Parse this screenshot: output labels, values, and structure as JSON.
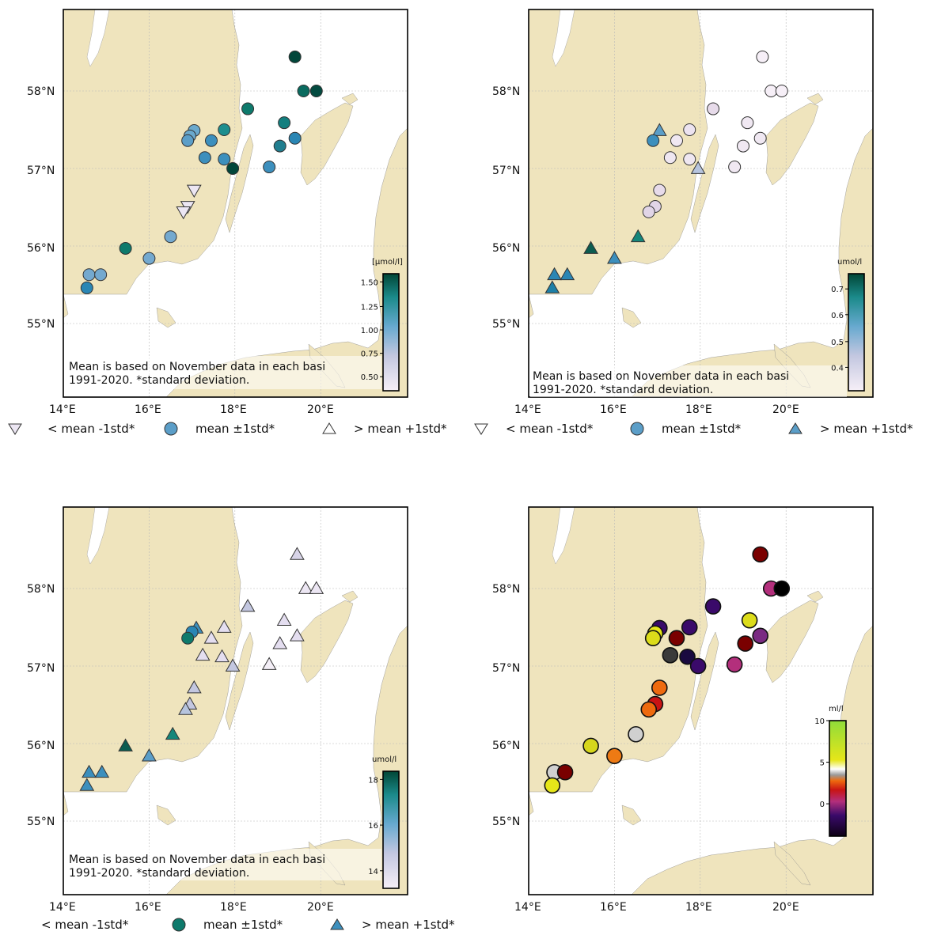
{
  "colors": {
    "land": "#efe4bd",
    "sea": "#ffffff",
    "grid": "#b8b8b8",
    "frame": "#000000"
  },
  "axis": {
    "lat_labels": [
      "58°N",
      "57°N",
      "56°N",
      "55°N"
    ],
    "lon_labels": [
      "14°E",
      "16°E",
      "18°E",
      "20°E"
    ]
  },
  "panels": [
    {
      "id": "p1",
      "note": [
        "Mean is based on November data in each basi",
        "1991-2020. *standard deviation."
      ],
      "colorbar": {
        "title": "[µmol/l]",
        "ticks": [
          "1.50",
          "1.25",
          "1.00",
          "0.75",
          "0.50"
        ],
        "scheme": "teal"
      },
      "legend": [
        {
          "marker": "tri-down",
          "fill": "#ece6f3",
          "label": "< mean -1std*"
        },
        {
          "marker": "circle",
          "fill": "#5b9ec8",
          "label": "mean ±1std*"
        },
        {
          "marker": "tri-up",
          "fill": "#ffffff",
          "label": "> mean +1std*"
        }
      ]
    },
    {
      "id": "p2",
      "note": [
        "Mean is based on November data in each basi",
        "1991-2020. *standard deviation."
      ],
      "colorbar": {
        "title": "umol/l",
        "ticks": [
          "0.7",
          "0.6",
          "0.5",
          "0.4"
        ],
        "scheme": "teal"
      },
      "legend": [
        {
          "marker": "tri-down",
          "fill": "#ffffff",
          "label": "< mean -1std*"
        },
        {
          "marker": "circle",
          "fill": "#5b9ec8",
          "label": "mean ±1std*"
        },
        {
          "marker": "tri-up",
          "fill": "#5b9ec8",
          "label": "> mean +1std*"
        }
      ]
    },
    {
      "id": "p3",
      "note": [
        "Mean is based on November data in each basi",
        "1991-2020. *standard deviation."
      ],
      "colorbar": {
        "title": "umol/l",
        "ticks": [
          "18",
          "16",
          "14"
        ],
        "scheme": "teal"
      },
      "legend": [
        {
          "marker": "none",
          "fill": "",
          "label": "< mean -1std*"
        },
        {
          "marker": "circle",
          "fill": "#0e7a6c",
          "label": "mean ±1std*"
        },
        {
          "marker": "tri-up",
          "fill": "#3c8fbd",
          "label": "> mean +1std*"
        }
      ]
    },
    {
      "id": "p4",
      "note": [],
      "colorbar": {
        "title": "ml/l",
        "ticks": [
          "10",
          "5",
          "0"
        ],
        "scheme": "oxygen"
      },
      "legend": []
    }
  ],
  "map_data": {
    "p1": [
      {
        "lon": 19.4,
        "lat": 58.44,
        "m": "circle",
        "c": "#01463a"
      },
      {
        "lon": 19.6,
        "lat": 58.0,
        "m": "circle",
        "c": "#0a6b5f"
      },
      {
        "lon": 19.9,
        "lat": 58.0,
        "m": "circle",
        "c": "#034b40"
      },
      {
        "lon": 18.3,
        "lat": 57.77,
        "m": "circle",
        "c": "#0e7a6c"
      },
      {
        "lon": 19.15,
        "lat": 57.59,
        "m": "circle",
        "c": "#137f7f"
      },
      {
        "lon": 17.75,
        "lat": 57.5,
        "m": "circle",
        "c": "#1d8e8e"
      },
      {
        "lon": 17.05,
        "lat": 57.49,
        "m": "circle",
        "c": "#6aa9cd"
      },
      {
        "lon": 16.95,
        "lat": 57.42,
        "m": "circle",
        "c": "#6aa9cd"
      },
      {
        "lon": 16.9,
        "lat": 57.36,
        "m": "circle",
        "c": "#5b9ec8"
      },
      {
        "lon": 17.45,
        "lat": 57.36,
        "m": "circle",
        "c": "#3c8fbd"
      },
      {
        "lon": 19.4,
        "lat": 57.39,
        "m": "circle",
        "c": "#2a86b4"
      },
      {
        "lon": 19.05,
        "lat": 57.29,
        "m": "circle",
        "c": "#207e8f"
      },
      {
        "lon": 17.3,
        "lat": 57.14,
        "m": "circle",
        "c": "#3c8fbd"
      },
      {
        "lon": 17.75,
        "lat": 57.12,
        "m": "circle",
        "c": "#3c8fbd"
      },
      {
        "lon": 17.95,
        "lat": 57.0,
        "m": "circle",
        "c": "#01463a"
      },
      {
        "lon": 18.8,
        "lat": 57.02,
        "m": "circle",
        "c": "#3c8fbd"
      },
      {
        "lon": 17.05,
        "lat": 56.72,
        "m": "tri-down",
        "c": "#ece6f3"
      },
      {
        "lon": 16.9,
        "lat": 56.51,
        "m": "tri-down",
        "c": "#ece6f3"
      },
      {
        "lon": 16.8,
        "lat": 56.44,
        "m": "tri-down",
        "c": "#ece6f3"
      },
      {
        "lon": 16.5,
        "lat": 56.12,
        "m": "circle",
        "c": "#74a9cf"
      },
      {
        "lon": 15.45,
        "lat": 55.97,
        "m": "circle",
        "c": "#0e7a6c"
      },
      {
        "lon": 16.0,
        "lat": 55.84,
        "m": "circle",
        "c": "#74a9cf"
      },
      {
        "lon": 14.6,
        "lat": 55.63,
        "m": "circle",
        "c": "#74a9cf"
      },
      {
        "lon": 14.87,
        "lat": 55.63,
        "m": "circle",
        "c": "#74a9cf"
      },
      {
        "lon": 14.55,
        "lat": 55.46,
        "m": "circle",
        "c": "#2a86b4"
      }
    ],
    "p2": [
      {
        "lon": 19.45,
        "lat": 58.44,
        "m": "circle",
        "c": "#f6eff7"
      },
      {
        "lon": 19.65,
        "lat": 58.0,
        "m": "circle",
        "c": "#f6eff7"
      },
      {
        "lon": 19.9,
        "lat": 58.0,
        "m": "circle",
        "c": "#f6eff7"
      },
      {
        "lon": 18.3,
        "lat": 57.77,
        "m": "circle",
        "c": "#e7dbea"
      },
      {
        "lon": 19.1,
        "lat": 57.59,
        "m": "circle",
        "c": "#f0e8f2"
      },
      {
        "lon": 17.75,
        "lat": 57.5,
        "m": "circle",
        "c": "#ece3f0"
      },
      {
        "lon": 17.05,
        "lat": 57.49,
        "m": "tri-up",
        "c": "#5b9ec8"
      },
      {
        "lon": 16.9,
        "lat": 57.36,
        "m": "circle",
        "c": "#3c8fbd"
      },
      {
        "lon": 17.45,
        "lat": 57.36,
        "m": "circle",
        "c": "#f0e8f2"
      },
      {
        "lon": 19.4,
        "lat": 57.39,
        "m": "circle",
        "c": "#f0e8f2"
      },
      {
        "lon": 19.0,
        "lat": 57.29,
        "m": "circle",
        "c": "#f0e8f2"
      },
      {
        "lon": 17.3,
        "lat": 57.14,
        "m": "circle",
        "c": "#efe7f1"
      },
      {
        "lon": 17.75,
        "lat": 57.12,
        "m": "circle",
        "c": "#efe7f1"
      },
      {
        "lon": 17.95,
        "lat": 57.0,
        "m": "tri-up",
        "c": "#b6c4de"
      },
      {
        "lon": 18.8,
        "lat": 57.02,
        "m": "circle",
        "c": "#f0e8f2"
      },
      {
        "lon": 17.05,
        "lat": 56.72,
        "m": "circle",
        "c": "#e7dbea"
      },
      {
        "lon": 16.95,
        "lat": 56.51,
        "m": "circle",
        "c": "#e1d5e7"
      },
      {
        "lon": 16.8,
        "lat": 56.44,
        "m": "circle",
        "c": "#e1d5e7"
      },
      {
        "lon": 16.55,
        "lat": 56.12,
        "m": "tri-up",
        "c": "#15867a"
      },
      {
        "lon": 15.45,
        "lat": 55.97,
        "m": "tri-up",
        "c": "#0b5c50"
      },
      {
        "lon": 16.0,
        "lat": 55.84,
        "m": "tri-up",
        "c": "#3c8fbd"
      },
      {
        "lon": 14.6,
        "lat": 55.63,
        "m": "tri-up",
        "c": "#2a86b4"
      },
      {
        "lon": 14.9,
        "lat": 55.63,
        "m": "tri-up",
        "c": "#2a86b4"
      },
      {
        "lon": 14.55,
        "lat": 55.46,
        "m": "tri-up",
        "c": "#1d7fa6"
      }
    ],
    "p3": [
      {
        "lon": 19.45,
        "lat": 58.44,
        "m": "tri-up",
        "c": "#d8d4e8"
      },
      {
        "lon": 19.65,
        "lat": 58.0,
        "m": "tri-up",
        "c": "#ece6f3"
      },
      {
        "lon": 19.9,
        "lat": 58.0,
        "m": "tri-up",
        "c": "#ece6f3"
      },
      {
        "lon": 18.3,
        "lat": 57.77,
        "m": "tri-up",
        "c": "#c3c7e0"
      },
      {
        "lon": 19.15,
        "lat": 57.59,
        "m": "tri-up",
        "c": "#e4def0"
      },
      {
        "lon": 17.75,
        "lat": 57.5,
        "m": "tri-up",
        "c": "#e4def0"
      },
      {
        "lon": 17.1,
        "lat": 57.49,
        "m": "tri-up",
        "c": "#3c8fbd"
      },
      {
        "lon": 17.0,
        "lat": 57.44,
        "m": "circle",
        "c": "#2a86b4"
      },
      {
        "lon": 16.9,
        "lat": 57.36,
        "m": "circle",
        "c": "#0e7a6c"
      },
      {
        "lon": 17.45,
        "lat": 57.36,
        "m": "tri-up",
        "c": "#e4def0"
      },
      {
        "lon": 19.45,
        "lat": 57.39,
        "m": "tri-up",
        "c": "#e4def0"
      },
      {
        "lon": 19.05,
        "lat": 57.29,
        "m": "tri-up",
        "c": "#e4def0"
      },
      {
        "lon": 17.25,
        "lat": 57.14,
        "m": "tri-up",
        "c": "#e4def0"
      },
      {
        "lon": 17.7,
        "lat": 57.12,
        "m": "tri-up",
        "c": "#e4def0"
      },
      {
        "lon": 17.95,
        "lat": 57.0,
        "m": "tri-up",
        "c": "#c3c7e0"
      },
      {
        "lon": 18.8,
        "lat": 57.02,
        "m": "tri-up",
        "c": "#f3eef6"
      },
      {
        "lon": 17.05,
        "lat": 56.72,
        "m": "tri-up",
        "c": "#c3c7e0"
      },
      {
        "lon": 16.95,
        "lat": 56.51,
        "m": "tri-up",
        "c": "#c3c7e0"
      },
      {
        "lon": 16.85,
        "lat": 56.44,
        "m": "tri-up",
        "c": "#b6c4de"
      },
      {
        "lon": 16.55,
        "lat": 56.12,
        "m": "tri-up",
        "c": "#15867a"
      },
      {
        "lon": 15.45,
        "lat": 55.97,
        "m": "tri-up",
        "c": "#0b5c50"
      },
      {
        "lon": 16.0,
        "lat": 55.84,
        "m": "tri-up",
        "c": "#5b9ec8"
      },
      {
        "lon": 14.6,
        "lat": 55.63,
        "m": "tri-up",
        "c": "#3c8fbd"
      },
      {
        "lon": 14.9,
        "lat": 55.63,
        "m": "tri-up",
        "c": "#3c8fbd"
      },
      {
        "lon": 14.55,
        "lat": 55.46,
        "m": "tri-up",
        "c": "#3c8fbd"
      }
    ],
    "p4": [
      {
        "lon": 19.4,
        "lat": 58.44,
        "m": "circle",
        "c": "#7a0000"
      },
      {
        "lon": 19.65,
        "lat": 58.0,
        "m": "circle",
        "c": "#b32f7c"
      },
      {
        "lon": 19.9,
        "lat": 58.0,
        "m": "circle",
        "c": "#000000"
      },
      {
        "lon": 18.3,
        "lat": 57.77,
        "m": "circle",
        "c": "#3a0a6a"
      },
      {
        "lon": 19.15,
        "lat": 57.59,
        "m": "circle",
        "c": "#dcdc1a"
      },
      {
        "lon": 17.05,
        "lat": 57.49,
        "m": "circle",
        "c": "#3a0a6a"
      },
      {
        "lon": 17.75,
        "lat": 57.5,
        "m": "circle",
        "c": "#3a0a6a"
      },
      {
        "lon": 16.95,
        "lat": 57.42,
        "m": "circle",
        "c": "#e6e619"
      },
      {
        "lon": 16.9,
        "lat": 57.36,
        "m": "circle",
        "c": "#dcdc1a"
      },
      {
        "lon": 17.45,
        "lat": 57.36,
        "m": "circle",
        "c": "#7a0000"
      },
      {
        "lon": 19.4,
        "lat": 57.39,
        "m": "circle",
        "c": "#7a2a82"
      },
      {
        "lon": 19.05,
        "lat": 57.29,
        "m": "circle",
        "c": "#7a0000"
      },
      {
        "lon": 17.3,
        "lat": 57.14,
        "m": "circle",
        "c": "#3a3a3a"
      },
      {
        "lon": 17.7,
        "lat": 57.12,
        "m": "circle",
        "c": "#1a0a40"
      },
      {
        "lon": 17.95,
        "lat": 57.0,
        "m": "circle",
        "c": "#3a0a6a"
      },
      {
        "lon": 18.8,
        "lat": 57.02,
        "m": "circle",
        "c": "#b32f7c"
      },
      {
        "lon": 17.05,
        "lat": 56.72,
        "m": "circle",
        "c": "#ee6a0e"
      },
      {
        "lon": 16.95,
        "lat": 56.51,
        "m": "circle",
        "c": "#c81414"
      },
      {
        "lon": 16.8,
        "lat": 56.44,
        "m": "circle",
        "c": "#ee6a0e"
      },
      {
        "lon": 16.5,
        "lat": 56.12,
        "m": "circle",
        "c": "#d0d0d0"
      },
      {
        "lon": 15.45,
        "lat": 55.97,
        "m": "circle",
        "c": "#d6d61c"
      },
      {
        "lon": 16.0,
        "lat": 55.84,
        "m": "circle",
        "c": "#ee7a14"
      },
      {
        "lon": 14.6,
        "lat": 55.63,
        "m": "circle",
        "c": "#d0d0d0"
      },
      {
        "lon": 14.85,
        "lat": 55.63,
        "m": "circle",
        "c": "#7a0000"
      },
      {
        "lon": 14.55,
        "lat": 55.46,
        "m": "circle",
        "c": "#e6e619"
      }
    ]
  }
}
